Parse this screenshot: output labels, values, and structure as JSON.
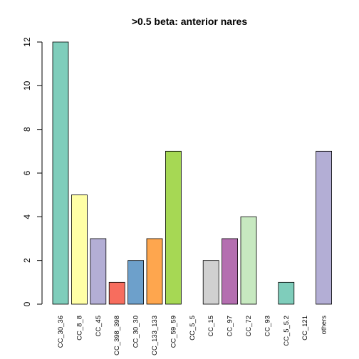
{
  "chart_data": {
    "type": "bar",
    "title": ">0.5 beta:  anterior nares",
    "xlabel": "",
    "ylabel": "",
    "ylim": [
      0,
      12
    ],
    "yticks": [
      0,
      2,
      4,
      6,
      8,
      10,
      12
    ],
    "categories": [
      "CC_30_36",
      "CC_8_8",
      "CC_45",
      "CC_398_398",
      "CC_30_30",
      "CC_133_133",
      "CC_59_59",
      "CC_5_5",
      "CC_15",
      "CC_97",
      "CC_72",
      "CC_93",
      "CC_5_5.2",
      "CC_121",
      "others"
    ],
    "values": [
      12,
      5,
      3,
      1,
      2,
      3,
      7,
      0,
      2,
      3,
      4,
      0,
      1,
      0,
      7
    ],
    "colors": [
      "#7fcdbb",
      "#ffffa6",
      "#b3aed5",
      "#f76d5e",
      "#6da0cb",
      "#fea64e",
      "#a6d854",
      "#d9d9d9",
      "#d0d0d0",
      "#b46eb0",
      "#c7e9c0",
      "#e5e5e5",
      "#7fcdbb",
      "#ffffa6",
      "#b3aed5"
    ],
    "grid": false,
    "legend": "none"
  }
}
